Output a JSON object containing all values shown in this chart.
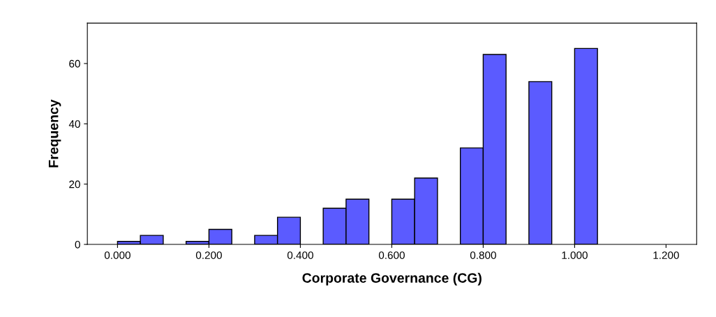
{
  "chart_data": {
    "type": "histogram",
    "xlabel": "Corporate Governance (CG)",
    "ylabel": "Frequency",
    "bins": [
      0.0,
      0.05,
      0.1,
      0.15,
      0.2,
      0.25,
      0.3,
      0.35,
      0.4,
      0.45,
      0.5,
      0.55,
      0.6,
      0.65,
      0.7,
      0.75,
      0.8,
      0.85,
      0.9,
      0.95,
      1.0,
      1.05
    ],
    "values": [
      1,
      3,
      0,
      1,
      5,
      0,
      3,
      9,
      0,
      12,
      15,
      0,
      15,
      22,
      0,
      32,
      63,
      0,
      54,
      0,
      65
    ],
    "color": "#5b5bff",
    "xlim": [
      -0.066,
      1.267
    ],
    "xticks": [
      {
        "value": 0,
        "label": "0.000"
      },
      {
        "value": 0.2,
        "label": "0.200"
      },
      {
        "value": 0.4,
        "label": "0.400"
      },
      {
        "value": 0.6,
        "label": "0.600"
      },
      {
        "value": 0.8,
        "label": "0.800"
      },
      {
        "value": 1.0,
        "label": "1.000"
      },
      {
        "value": 1.2,
        "label": "1.200"
      }
    ],
    "ylim": [
      0,
      73.4
    ],
    "yticks": [
      0,
      20,
      40,
      60
    ],
    "grid": false,
    "legend": false
  }
}
